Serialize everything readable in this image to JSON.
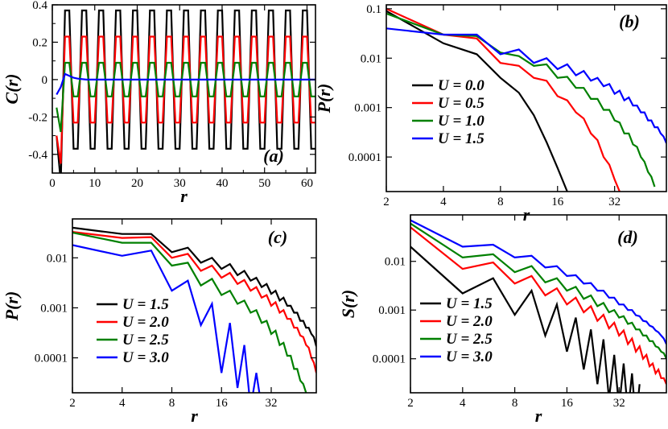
{
  "colors": {
    "black": "#000000",
    "red": "#ff0000",
    "green": "#008000",
    "blue": "#0000ff"
  },
  "chart_data": [
    {
      "id": "a",
      "type": "line",
      "panel_label": "(a)",
      "xlabel": "r",
      "ylabel": "C(r)",
      "xscale": "linear",
      "xlim": [
        0,
        62
      ],
      "ylim": [
        -0.5,
        0.4
      ],
      "xticks": [
        0,
        10,
        20,
        30,
        40,
        50,
        60
      ],
      "xtick_labels": [
        "0",
        "10",
        "20",
        "30",
        "40",
        "50",
        "60"
      ],
      "yticks": [
        0.4,
        0.2,
        0,
        -0.2,
        -0.4
      ],
      "ytick_labels": [
        "0.4",
        "0.2",
        "0",
        "-0.2",
        "-0.4"
      ],
      "legend": [],
      "series": [
        {
          "name": "U = 0.0",
          "color": "#000000",
          "pattern": "alternating",
          "first": [
            1,
            -0.3
          ],
          "second": [
            2,
            -0.55
          ],
          "amplitude": 0.37
        },
        {
          "name": "U = 0.5",
          "color": "#ff0000",
          "pattern": "alternating",
          "first": [
            1,
            -0.3
          ],
          "second": [
            2,
            -0.45
          ],
          "amplitude": 0.23
        },
        {
          "name": "U = 1.0",
          "color": "#008000",
          "pattern": "alternating",
          "first": [
            1,
            -0.15
          ],
          "second": [
            2,
            -0.28
          ],
          "amplitude": 0.09
        },
        {
          "name": "U = 1.5",
          "color": "#0000ff",
          "pattern": "points",
          "x": [
            1,
            2,
            3,
            4,
            5,
            6,
            8,
            10,
            62
          ],
          "y": [
            -0.08,
            -0.04,
            0.03,
            0.02,
            0.01,
            0.005,
            0.0,
            0.0,
            0.0
          ]
        }
      ]
    },
    {
      "id": "b",
      "type": "line",
      "panel_label": "(b)",
      "xlabel": "r",
      "ylabel": "P(r)",
      "xscale": "log2",
      "yscale": "log10",
      "xlim": [
        2,
        60
      ],
      "ylim": [
        2e-05,
        0.12
      ],
      "xticks": [
        2,
        4,
        8,
        16,
        32
      ],
      "xtick_labels": [
        "2",
        "4",
        "8",
        "16",
        "32"
      ],
      "yticks": [
        0.1,
        0.01,
        0.001,
        0.0001
      ],
      "ytick_labels": [
        "0.1",
        "0.01",
        "0.001",
        "0.0001"
      ],
      "legend": [
        "U = 0.0",
        "U = 0.5",
        "U = 1.0",
        "U = 1.5"
      ],
      "series": [
        {
          "name": "U = 0.0",
          "color": "#000000",
          "x": [
            2,
            4,
            6,
            8,
            10,
            12,
            14,
            16,
            18,
            20
          ],
          "y": [
            0.09,
            0.02,
            0.012,
            0.004,
            0.002,
            0.0007,
            0.0002,
            6e-05,
            2e-05,
            7e-06
          ]
        },
        {
          "name": "U = 0.5",
          "color": "#ff0000",
          "x": [
            2,
            4,
            6,
            8,
            10,
            12,
            14,
            16,
            18,
            20,
            22,
            24,
            26,
            28,
            30,
            32,
            34
          ],
          "y": [
            0.1,
            0.03,
            0.025,
            0.008,
            0.007,
            0.004,
            0.0035,
            0.0017,
            0.0014,
            0.0008,
            0.0006,
            0.0003,
            0.00022,
            0.0001,
            7e-05,
            3.5e-05,
            2e-05
          ]
        },
        {
          "name": "U = 1.0",
          "color": "#008000",
          "x": [
            2,
            4,
            6,
            8,
            10,
            12,
            14,
            16,
            18,
            20,
            22,
            24,
            26,
            28,
            30,
            32,
            34,
            36,
            38,
            40,
            42,
            44,
            46,
            48,
            50,
            52
          ],
          "y": [
            0.08,
            0.03,
            0.028,
            0.013,
            0.011,
            0.007,
            0.0075,
            0.004,
            0.0042,
            0.0025,
            0.0025,
            0.0015,
            0.0015,
            0.0009,
            0.0009,
            0.00055,
            0.0005,
            0.0003,
            0.0003,
            0.00018,
            0.00016,
            0.0001,
            8e-05,
            5e-05,
            4e-05,
            2.5e-05
          ]
        },
        {
          "name": "U = 1.5",
          "color": "#0000ff",
          "x": [
            2,
            4,
            6,
            8,
            10,
            12,
            14,
            16,
            18,
            20,
            22,
            24,
            26,
            28,
            30,
            32,
            34,
            36,
            38,
            40,
            42,
            44,
            46,
            48,
            50,
            52,
            54,
            56,
            58,
            60
          ],
          "y": [
            0.04,
            0.03,
            0.03,
            0.012,
            0.015,
            0.008,
            0.01,
            0.006,
            0.0075,
            0.0045,
            0.0055,
            0.0035,
            0.004,
            0.0027,
            0.003,
            0.0019,
            0.0022,
            0.0014,
            0.0016,
            0.0011,
            0.0011,
            0.0008,
            0.0008,
            0.00055,
            0.00055,
            0.0004,
            0.0004,
            0.0003,
            0.00026,
            0.00019
          ]
        }
      ]
    },
    {
      "id": "c",
      "type": "line",
      "panel_label": "(c)",
      "xlabel": "r",
      "ylabel": "P(r)",
      "xscale": "log2",
      "yscale": "log10",
      "xlim": [
        2,
        60
      ],
      "ylim": [
        2e-05,
        0.06
      ],
      "xticks": [
        2,
        4,
        8,
        16,
        32
      ],
      "xtick_labels": [
        "2",
        "4",
        "8",
        "16",
        "32"
      ],
      "yticks": [
        0.01,
        0.001,
        0.0001
      ],
      "ytick_labels": [
        "0.01",
        "0.001",
        "0.0001"
      ],
      "legend": [
        "U = 1.5",
        "U = 2.0",
        "U = 2.5",
        "U = 3.0"
      ],
      "series": [
        {
          "name": "U = 1.5",
          "color": "#000000",
          "x": [
            2,
            4,
            6,
            8,
            10,
            12,
            14,
            16,
            18,
            20,
            22,
            24,
            26,
            28,
            30,
            32,
            34,
            36,
            38,
            40,
            42,
            44,
            46,
            48,
            50,
            52,
            54,
            56,
            58,
            60
          ],
          "y": [
            0.04,
            0.03,
            0.03,
            0.013,
            0.016,
            0.008,
            0.01,
            0.006,
            0.0075,
            0.0045,
            0.0055,
            0.0035,
            0.004,
            0.0026,
            0.003,
            0.0019,
            0.0022,
            0.0014,
            0.0016,
            0.0011,
            0.0011,
            0.0008,
            0.0008,
            0.00055,
            0.00055,
            0.0004,
            0.0004,
            0.0003,
            0.00026,
            0.00017
          ]
        },
        {
          "name": "U = 2.0",
          "color": "#ff0000",
          "x": [
            2,
            4,
            6,
            8,
            10,
            12,
            14,
            16,
            18,
            20,
            22,
            24,
            26,
            28,
            30,
            32,
            34,
            36,
            38,
            40,
            42,
            44,
            46,
            48,
            50,
            52,
            54,
            56,
            58,
            60
          ],
          "y": [
            0.033,
            0.025,
            0.026,
            0.01,
            0.012,
            0.0055,
            0.007,
            0.004,
            0.005,
            0.003,
            0.0036,
            0.0022,
            0.0026,
            0.0016,
            0.0018,
            0.0011,
            0.0013,
            0.0008,
            0.0009,
            0.0006,
            0.0006,
            0.0004,
            0.0004,
            0.00028,
            0.00026,
            0.00018,
            0.00016,
            0.0001,
            8e-05,
            5e-05
          ]
        },
        {
          "name": "U = 2.5",
          "color": "#008000",
          "x": [
            2,
            4,
            6,
            8,
            10,
            12,
            14,
            16,
            18,
            20,
            22,
            24,
            26,
            28,
            30,
            32,
            34,
            36,
            38,
            40,
            42,
            44,
            46,
            48,
            50,
            52
          ],
          "y": [
            0.032,
            0.02,
            0.02,
            0.007,
            0.008,
            0.0028,
            0.0038,
            0.0018,
            0.0022,
            0.0012,
            0.0014,
            0.0008,
            0.0009,
            0.0005,
            0.00055,
            0.0003,
            0.00035,
            0.00018,
            0.0002,
            0.00011,
            0.00011,
            6e-05,
            6e-05,
            3.5e-05,
            3e-05,
            2e-05
          ]
        },
        {
          "name": "U = 3.0",
          "color": "#0000ff",
          "x": [
            2,
            4,
            6,
            8,
            10,
            12,
            14,
            16,
            18,
            20,
            22,
            24,
            26,
            28,
            30
          ],
          "y": [
            0.018,
            0.011,
            0.014,
            0.0022,
            0.0035,
            0.00045,
            0.0012,
            5e-05,
            0.0005,
            2.5e-05,
            0.00018,
            1e-05,
            5e-05,
            1e-05,
            2e-05
          ]
        }
      ]
    },
    {
      "id": "d",
      "type": "line",
      "panel_label": "(d)",
      "xlabel": "r",
      "ylabel": "S(r)",
      "xscale": "log2",
      "yscale": "log10",
      "xlim": [
        2,
        60
      ],
      "ylim": [
        2e-05,
        0.09
      ],
      "xticks": [
        2,
        4,
        8,
        16,
        32
      ],
      "xtick_labels": [
        "2",
        "4",
        "8",
        "16",
        "32"
      ],
      "yticks": [
        0.01,
        0.001,
        0.0001
      ],
      "ytick_labels": [
        "0.01",
        "0.001",
        "0.0001"
      ],
      "legend": [
        "U = 1.5",
        "U = 2.0",
        "U = 2.5",
        "U = 3.0"
      ],
      "series": [
        {
          "name": "U = 1.5",
          "color": "#000000",
          "x": [
            2,
            4,
            6,
            8,
            10,
            12,
            14,
            16,
            18,
            20,
            22,
            24,
            26,
            28,
            30,
            32,
            34,
            36,
            38,
            40,
            42
          ],
          "y": [
            0.02,
            0.0022,
            0.0045,
            0.0008,
            0.0025,
            0.0003,
            0.0013,
            0.00014,
            0.0007,
            6e-05,
            0.0004,
            3e-05,
            0.00025,
            1.5e-05,
            0.00012,
            1e-05,
            8e-05,
            8e-06,
            5e-05,
            5e-06,
            3e-05
          ]
        },
        {
          "name": "U = 2.0",
          "color": "#ff0000",
          "x": [
            2,
            4,
            6,
            8,
            10,
            12,
            14,
            16,
            18,
            20,
            22,
            24,
            26,
            28,
            30,
            32,
            34,
            36,
            38,
            40,
            42,
            44,
            46,
            48,
            50,
            52,
            54,
            56,
            58,
            60
          ],
          "y": [
            0.05,
            0.007,
            0.0095,
            0.0035,
            0.005,
            0.002,
            0.0028,
            0.0013,
            0.0018,
            0.0009,
            0.0012,
            0.0006,
            0.0008,
            0.00042,
            0.00055,
            0.0003,
            0.00038,
            0.0002,
            0.00026,
            0.00014,
            0.00018,
            0.0001,
            0.00012,
            7e-05,
            8e-05,
            5e-05,
            6e-05,
            4e-05,
            4e-05,
            3e-05
          ]
        },
        {
          "name": "U = 2.5",
          "color": "#008000",
          "x": [
            2,
            4,
            6,
            8,
            10,
            12,
            14,
            16,
            18,
            20,
            22,
            24,
            26,
            28,
            30,
            32,
            34,
            36,
            38,
            40,
            42,
            44,
            46,
            48,
            50,
            52,
            54,
            56,
            58,
            60
          ],
          "y": [
            0.06,
            0.012,
            0.014,
            0.006,
            0.008,
            0.0037,
            0.0045,
            0.0025,
            0.003,
            0.0017,
            0.002,
            0.0012,
            0.0014,
            0.0009,
            0.001,
            0.0007,
            0.00075,
            0.00052,
            0.00055,
            0.0004,
            0.0004,
            0.0003,
            0.0003,
            0.00023,
            0.00023,
            0.00018,
            0.00017,
            0.00014,
            0.00013,
            0.0001
          ]
        },
        {
          "name": "U = 3.0",
          "color": "#0000ff",
          "x": [
            2,
            4,
            6,
            8,
            10,
            12,
            14,
            16,
            18,
            20,
            22,
            24,
            26,
            28,
            30,
            32,
            34,
            36,
            38,
            40,
            42,
            44,
            46,
            48,
            50,
            52,
            54,
            56,
            58,
            60
          ],
          "y": [
            0.07,
            0.02,
            0.022,
            0.012,
            0.013,
            0.0075,
            0.008,
            0.005,
            0.0052,
            0.0035,
            0.0036,
            0.0025,
            0.0025,
            0.0018,
            0.0018,
            0.0013,
            0.0013,
            0.001,
            0.001,
            0.00078,
            0.00075,
            0.0006,
            0.00058,
            0.00048,
            0.00045,
            0.00038,
            0.00035,
            0.0003,
            0.00026,
            0.0002
          ]
        }
      ]
    }
  ]
}
